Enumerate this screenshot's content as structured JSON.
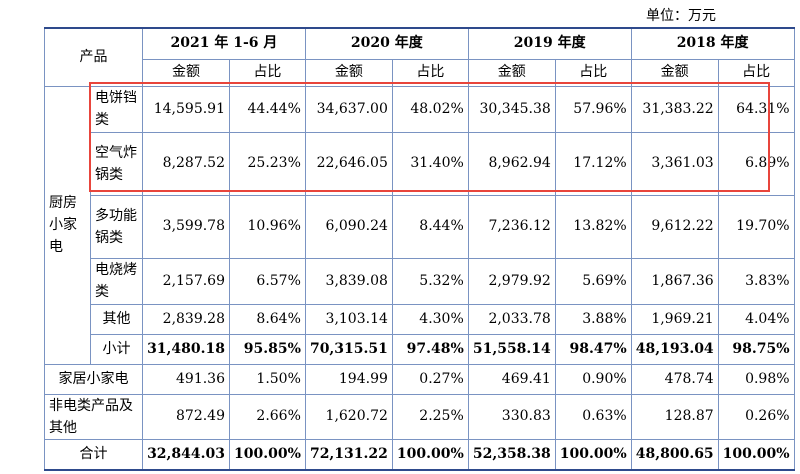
{
  "unit": "单位：万元",
  "header": {
    "product": "产品",
    "periods": [
      "2021 年 1-6 月",
      "2020 年度",
      "2019 年度",
      "2018 年度"
    ],
    "amount": "金额",
    "ratio": "占比"
  },
  "kitchen": {
    "group": "厨房小家电",
    "rows": [
      {
        "name": "电饼铛类",
        "v": [
          "14,595.91",
          "44.44%",
          "34,637.00",
          "48.02%",
          "30,345.38",
          "57.96%",
          "31,383.22",
          "64.31%"
        ]
      },
      {
        "name": "空气炸锅类",
        "v": [
          "8,287.52",
          "25.23%",
          "22,646.05",
          "31.40%",
          "8,962.94",
          "17.12%",
          "3,361.03",
          "6.89%"
        ]
      },
      {
        "name": "多功能锅类",
        "v": [
          "3,599.78",
          "10.96%",
          "6,090.24",
          "8.44%",
          "7,236.12",
          "13.82%",
          "9,612.22",
          "19.70%"
        ]
      },
      {
        "name": "电烧烤类",
        "v": [
          "2,157.69",
          "6.57%",
          "3,839.08",
          "5.32%",
          "2,979.92",
          "5.69%",
          "1,867.36",
          "3.83%"
        ]
      },
      {
        "name": "其他",
        "v": [
          "2,839.28",
          "8.64%",
          "3,103.14",
          "4.30%",
          "2,033.78",
          "3.88%",
          "1,969.21",
          "4.04%"
        ]
      }
    ],
    "subtotal": {
      "name": "小计",
      "v": [
        "31,480.18",
        "95.85%",
        "70,315.51",
        "97.48%",
        "51,558.14",
        "98.47%",
        "48,193.04",
        "98.75%"
      ]
    }
  },
  "home": {
    "name": "家居小家电",
    "v": [
      "491.36",
      "1.50%",
      "194.99",
      "0.27%",
      "469.41",
      "0.90%",
      "478.74",
      "0.98%"
    ]
  },
  "nonelec": {
    "name": "非电类产品及其他",
    "v": [
      "872.49",
      "2.66%",
      "1,620.72",
      "2.25%",
      "330.83",
      "0.63%",
      "128.87",
      "0.26%"
    ]
  },
  "total": {
    "name": "合计",
    "v": [
      "32,844.03",
      "100.00%",
      "72,131.22",
      "100.00%",
      "52,358.38",
      "100.00%",
      "48,800.65",
      "100.00%"
    ]
  }
}
